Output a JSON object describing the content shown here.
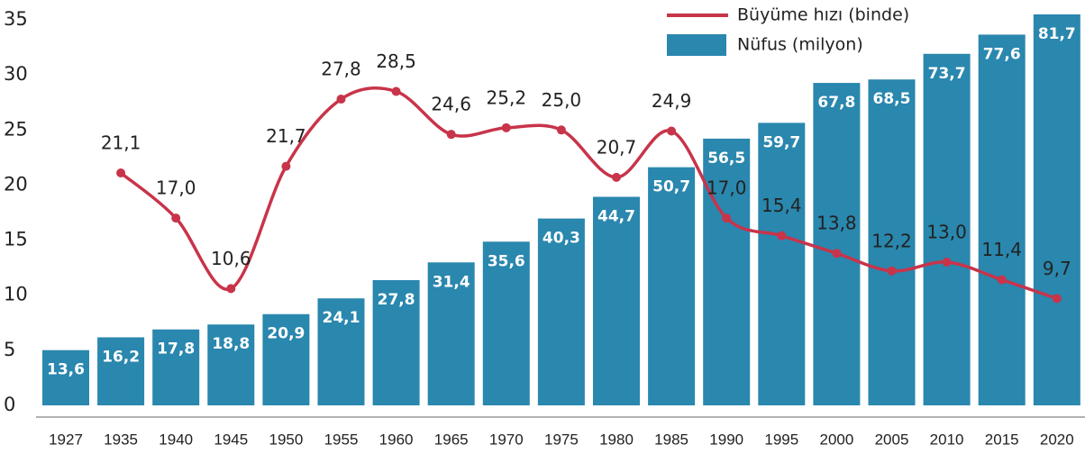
{
  "chart_data": {
    "type": "bar",
    "categories": [
      "1927",
      "1935",
      "1940",
      "1945",
      "1950",
      "1955",
      "1960",
      "1965",
      "1970",
      "1975",
      "1980",
      "1985",
      "1990",
      "1995",
      "2000",
      "2005",
      "2010",
      "2015",
      "2020"
    ],
    "ylim": [
      0,
      35
    ],
    "yticks": [
      0,
      5,
      10,
      15,
      20,
      25,
      30,
      35
    ],
    "y2lim": [
      2.4,
      80.6
    ],
    "legend": "top-right",
    "series": [
      {
        "name": "Büyüme hızı (binde)",
        "type": "line",
        "color": "#c8344a",
        "values": [
          null,
          21.1,
          17.0,
          10.6,
          21.7,
          27.8,
          28.5,
          24.6,
          25.2,
          25.0,
          20.7,
          24.9,
          17.0,
          15.4,
          13.8,
          12.2,
          13.0,
          11.4,
          9.7
        ],
        "value_labels": [
          null,
          "21,1",
          "17,0",
          "10,6",
          "21,7",
          "27,8",
          "28,5",
          "24,6",
          "25,2",
          "25,0",
          "20,7",
          "24,9",
          "17,0",
          "15,4",
          "13,8",
          "12,2",
          "13,0",
          "11,4",
          "9,7"
        ]
      },
      {
        "name": "Nüfus (milyon)",
        "type": "bar",
        "axis": "y2",
        "color": "#2a87ae",
        "values": [
          13.6,
          16.2,
          17.8,
          18.8,
          20.9,
          24.1,
          27.8,
          31.4,
          35.6,
          40.3,
          44.7,
          50.7,
          56.5,
          59.7,
          67.8,
          68.5,
          73.7,
          77.6,
          81.7
        ],
        "value_labels": [
          "13,6",
          "16,2",
          "17,8",
          "18,8",
          "20,9",
          "24,1",
          "27,8",
          "31,4",
          "35,6",
          "40,3",
          "44,7",
          "50,7",
          "56,5",
          "59,7",
          "67,8",
          "68,5",
          "73,7",
          "77,6",
          "81,7"
        ]
      }
    ]
  }
}
